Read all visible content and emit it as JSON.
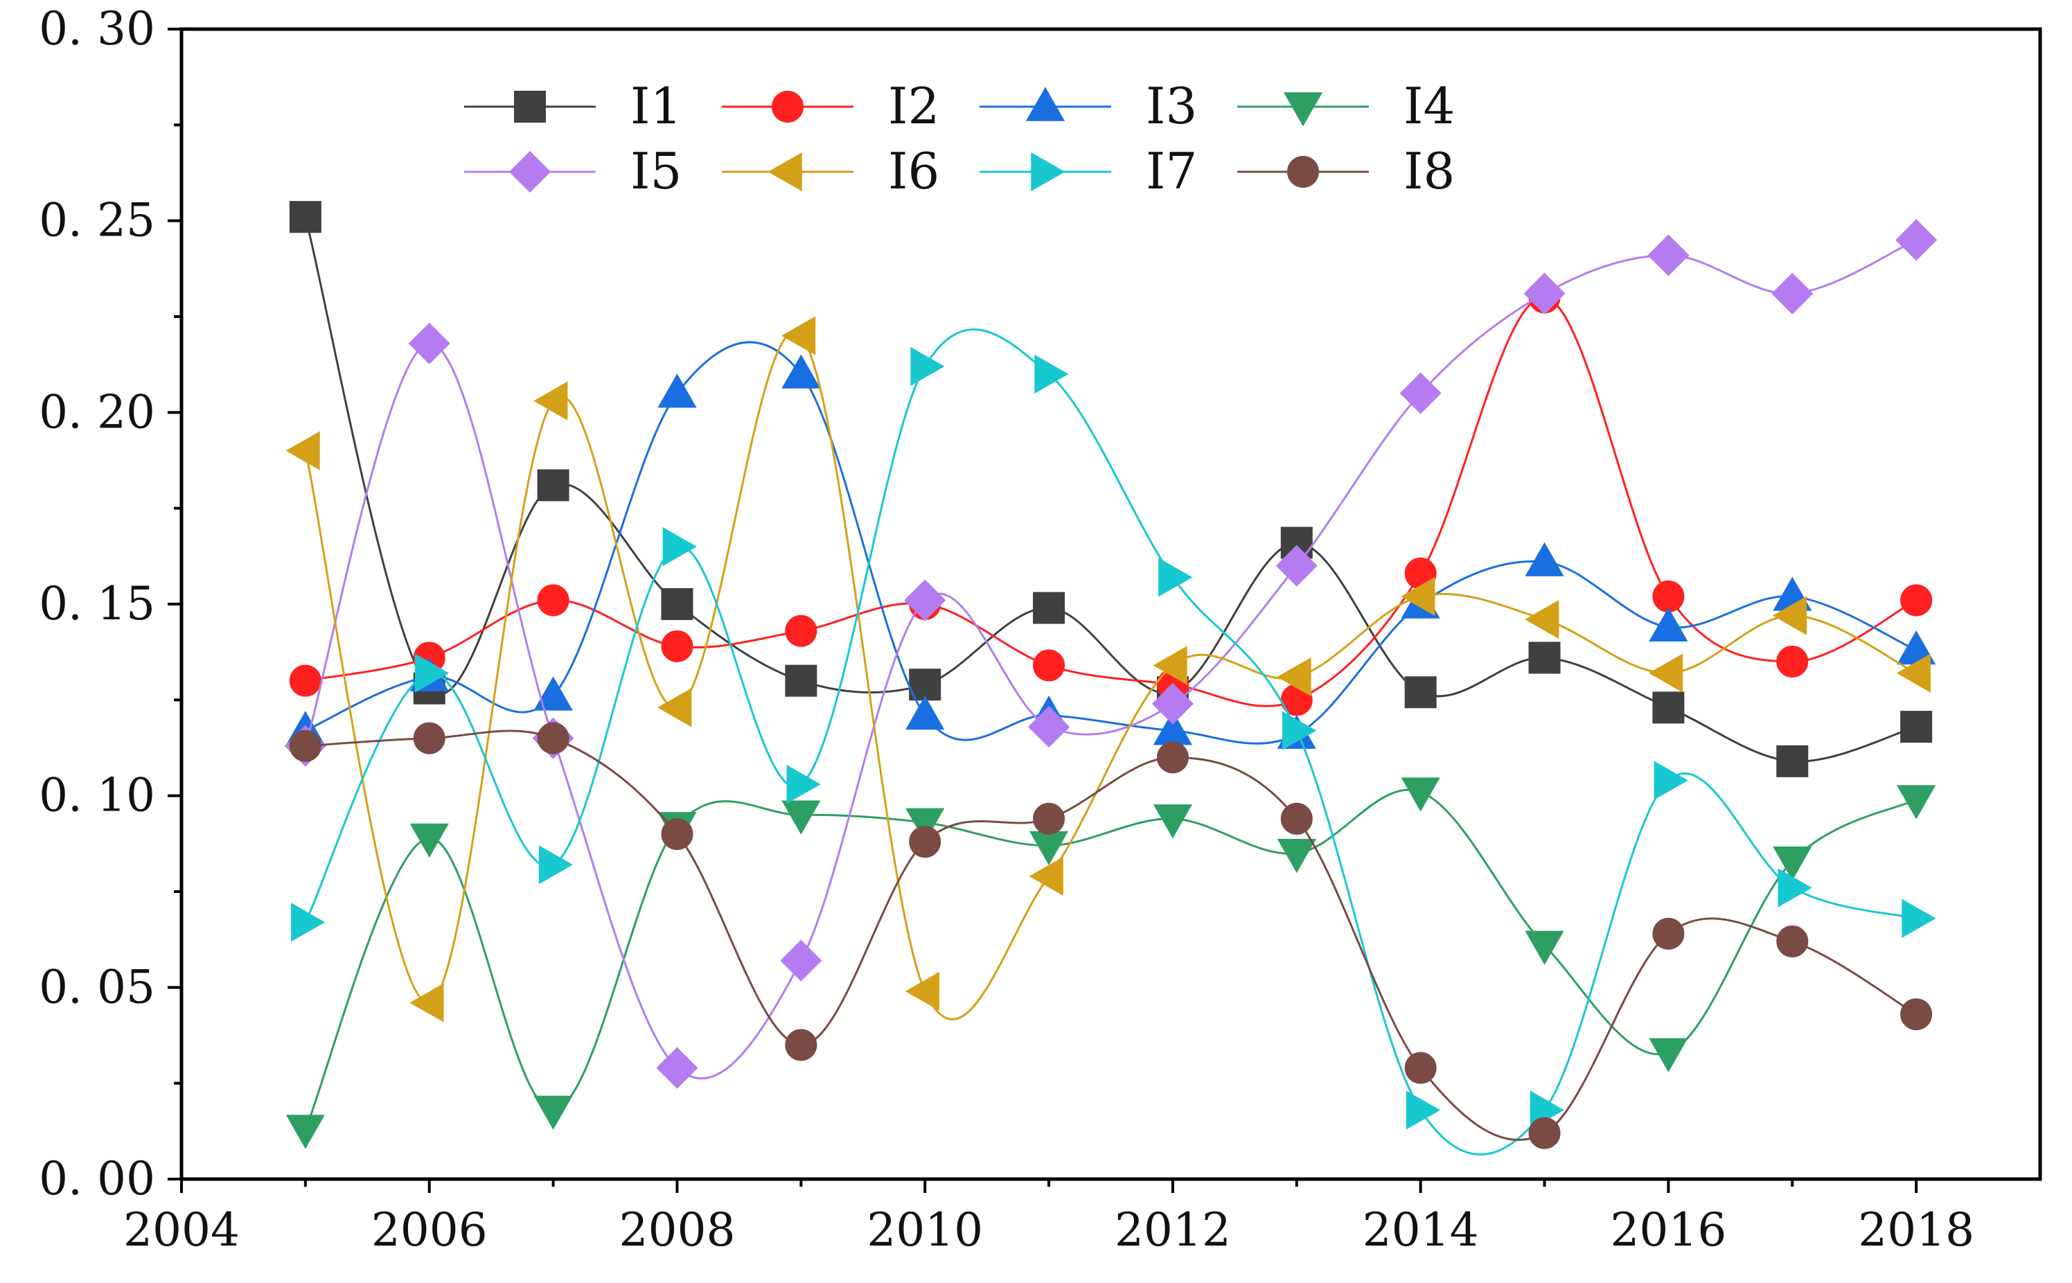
{
  "chart_data": {
    "type": "line",
    "title": "",
    "xlabel": "",
    "ylabel": "",
    "xlim": [
      2004,
      2019
    ],
    "ylim": [
      0,
      0.3
    ],
    "xticks": [
      "2004",
      "2006",
      "2008",
      "2010",
      "2012",
      "2014",
      "2016",
      "2018"
    ],
    "yticks": [
      "0.00",
      "0.05",
      "0.10",
      "0.15",
      "0.20",
      "0.25",
      "0.30"
    ],
    "grid": false,
    "legend_position": "top-left",
    "x": [
      2005,
      2006,
      2007,
      2008,
      2009,
      2010,
      2011,
      2012,
      2013,
      2014,
      2015,
      2016,
      2017,
      2018
    ],
    "series": [
      {
        "name": "I1",
        "color": "#404040",
        "marker": "square",
        "values": [
          0.251,
          0.128,
          0.181,
          0.15,
          0.13,
          0.129,
          0.149,
          0.127,
          0.166,
          0.127,
          0.136,
          0.123,
          0.109,
          0.118
        ]
      },
      {
        "name": "I2",
        "color": "#ff2020",
        "marker": "circle",
        "values": [
          0.13,
          0.136,
          0.151,
          0.139,
          0.143,
          0.15,
          0.134,
          0.129,
          0.125,
          0.158,
          0.23,
          0.152,
          0.135,
          0.151
        ]
      },
      {
        "name": "I3",
        "color": "#1a6fe0",
        "marker": "triangle-up",
        "values": [
          0.117,
          0.131,
          0.126,
          0.205,
          0.21,
          0.121,
          0.121,
          0.117,
          0.116,
          0.15,
          0.161,
          0.144,
          0.152,
          0.138
        ]
      },
      {
        "name": "I4",
        "color": "#2e9f63",
        "marker": "triangle-down",
        "values": [
          0.013,
          0.089,
          0.018,
          0.092,
          0.095,
          0.093,
          0.087,
          0.094,
          0.085,
          0.101,
          0.061,
          0.033,
          0.083,
          0.099
        ]
      },
      {
        "name": "I5",
        "color": "#b47cf0",
        "marker": "diamond",
        "values": [
          0.113,
          0.218,
          0.115,
          0.029,
          0.057,
          0.151,
          0.118,
          0.124,
          0.16,
          0.205,
          0.231,
          0.241,
          0.231,
          0.245
        ]
      },
      {
        "name": "I6",
        "color": "#d4a017",
        "marker": "triangle-left",
        "values": [
          0.19,
          0.046,
          0.203,
          0.123,
          0.22,
          0.049,
          0.079,
          0.134,
          0.131,
          0.152,
          0.146,
          0.132,
          0.147,
          0.132
        ]
      },
      {
        "name": "I7",
        "color": "#18c8d0",
        "marker": "triangle-right",
        "values": [
          0.067,
          0.132,
          0.082,
          0.165,
          0.103,
          0.212,
          0.21,
          0.157,
          0.117,
          0.018,
          0.018,
          0.104,
          0.076,
          0.068
        ]
      },
      {
        "name": "I8",
        "color": "#7a4a44",
        "marker": "circle",
        "values": [
          0.113,
          0.115,
          0.115,
          0.09,
          0.035,
          0.088,
          0.094,
          0.11,
          0.094,
          0.029,
          0.012,
          0.064,
          0.062,
          0.043
        ]
      }
    ]
  }
}
